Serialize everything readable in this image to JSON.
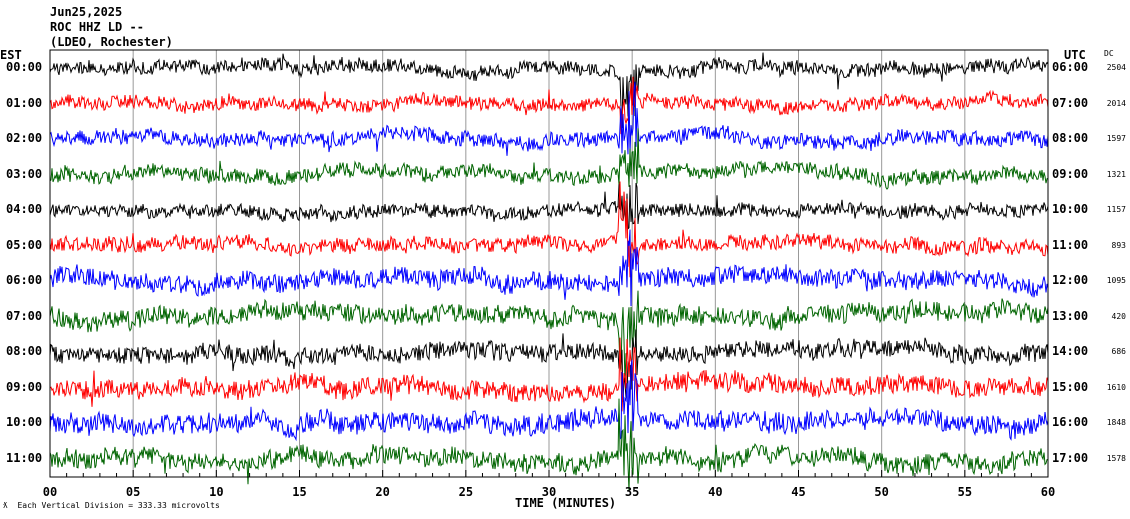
{
  "header": {
    "date": "Jun25,2025",
    "station": "ROC HHZ LD --",
    "network": "(LDEO, Rochester)"
  },
  "left_axis_title": "EST",
  "right_axis_title": "UTC",
  "dc_title": "DC",
  "footer": {
    "symbol": "ƛ",
    "scale": "Each Vertical Division =  333.33 microvolts"
  },
  "chart_data": {
    "type": "line",
    "title": "ROC HHZ LD -- helicorder",
    "xlabel": "TIME (MINUTES)",
    "xlim": [
      0,
      60
    ],
    "xticks": [
      "00",
      "05",
      "10",
      "15",
      "20",
      "25",
      "30",
      "35",
      "40",
      "45",
      "50",
      "55",
      "60"
    ],
    "event_minute": 34.8,
    "rows": [
      {
        "est": "00:00",
        "utc": "06:00",
        "dc": "2504",
        "color": "#000000",
        "amp": 1.0
      },
      {
        "est": "01:00",
        "utc": "07:00",
        "dc": "2014",
        "color": "#ff0000",
        "amp": 1.0
      },
      {
        "est": "02:00",
        "utc": "08:00",
        "dc": "1597",
        "color": "#0000ff",
        "amp": 1.1
      },
      {
        "est": "03:00",
        "utc": "09:00",
        "dc": "1321",
        "color": "#006400",
        "amp": 1.1
      },
      {
        "est": "04:00",
        "utc": "10:00",
        "dc": "1157",
        "color": "#000000",
        "amp": 1.0
      },
      {
        "est": "05:00",
        "utc": "11:00",
        "dc": "893",
        "color": "#ff0000",
        "amp": 1.1
      },
      {
        "est": "06:00",
        "utc": "12:00",
        "dc": "1095",
        "color": "#0000ff",
        "amp": 1.4
      },
      {
        "est": "07:00",
        "utc": "13:00",
        "dc": "420",
        "color": "#006400",
        "amp": 1.4
      },
      {
        "est": "08:00",
        "utc": "14:00",
        "dc": "686",
        "color": "#000000",
        "amp": 1.3
      },
      {
        "est": "09:00",
        "utc": "15:00",
        "dc": "1610",
        "color": "#ff0000",
        "amp": 1.4
      },
      {
        "est": "10:00",
        "utc": "16:00",
        "dc": "1848",
        "color": "#0000ff",
        "amp": 1.5
      },
      {
        "est": "11:00",
        "utc": "17:00",
        "dc": "1578",
        "color": "#006400",
        "amp": 1.4
      }
    ]
  }
}
